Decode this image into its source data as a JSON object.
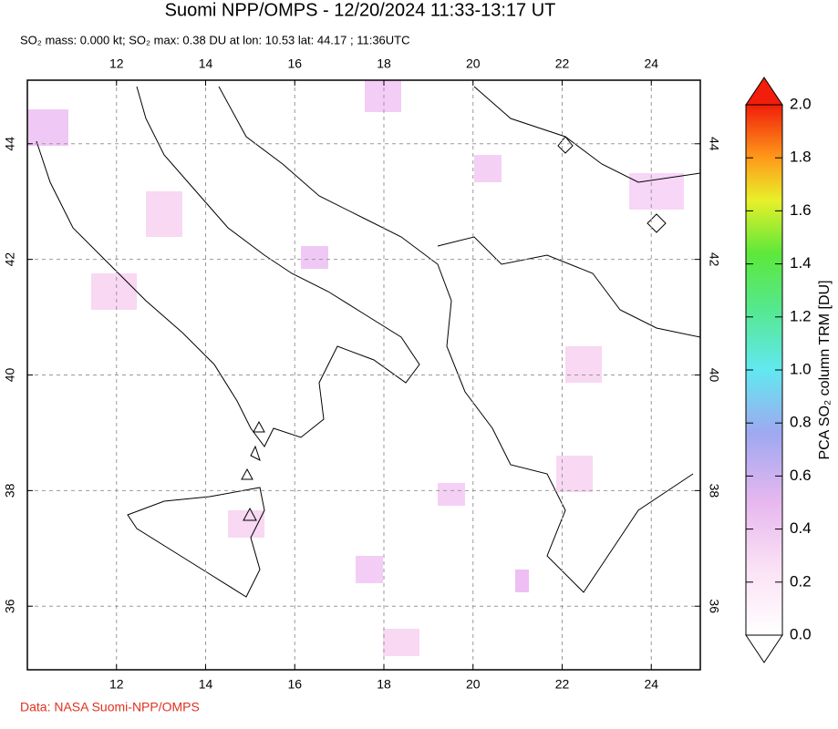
{
  "title": "Suomi NPP/OMPS - 12/20/2024 11:33-13:17 UT",
  "subtitle": "SO₂ mass: 0.000 kt; SO₂ max: 0.38 DU at lon: 10.53 lat: 44.17 ; 11:36UTC",
  "credit": "Data: NASA Suomi-NPP/OMPS",
  "map": {
    "xlim": [
      10,
      25.1
    ],
    "ylim": [
      34.9,
      45.1
    ],
    "xticks": [
      12,
      14,
      16,
      18,
      20,
      22,
      24
    ],
    "yticks": [
      36,
      38,
      40,
      42,
      44
    ]
  },
  "colorbar": {
    "label": "PCA SO₂ column TRM [DU]",
    "lim": [
      0,
      2
    ],
    "ticks": [
      {
        "value": 0,
        "label": "0.0"
      },
      {
        "value": 0.2,
        "label": "0.2"
      },
      {
        "value": 0.4,
        "label": "0.4"
      },
      {
        "value": 0.6,
        "label": "0.6"
      },
      {
        "value": 0.8,
        "label": "0.8"
      },
      {
        "value": 1,
        "label": "1.0"
      },
      {
        "value": 1.2,
        "label": "1.2"
      },
      {
        "value": 1.4,
        "label": "1.4"
      },
      {
        "value": 1.6,
        "label": "1.6"
      },
      {
        "value": 1.8,
        "label": "1.8"
      },
      {
        "value": 2,
        "label": "2.0"
      }
    ]
  }
}
